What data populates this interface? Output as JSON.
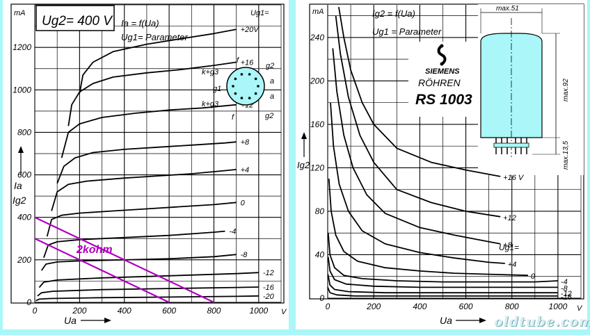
{
  "left_chart": {
    "title": "Ug2= 400 V",
    "function_line": "Ia = f(Ua)",
    "parameter_line": "Ug1= Parameter",
    "param_label": "Ug1=",
    "y_unit": "mA",
    "y_label_1": "Ia",
    "y_label_2": "Ig2",
    "x_label": "Ua",
    "x_unit": "V",
    "load_line_label": "2kohm",
    "load_line_color": "#b000c0",
    "pins": {
      "top": "f",
      "top_right": "g2",
      "right_upper": "a",
      "right_lower": "a",
      "bottom_right": "g2",
      "bottom": "f",
      "left_lower": "k+g3",
      "left_mid": "g1",
      "left_upper": "k+g3"
    },
    "pin_circle_color": "#aaf6f8"
  },
  "right_chart": {
    "function_line": "Ig2 = f(Ua)",
    "parameter_line": "Ug1 = Parameter",
    "param_label": "Ug1=",
    "y_unit": "mA",
    "y_label": "Ig2",
    "x_label": "Ua",
    "x_unit": "V"
  },
  "tube": {
    "brand": "SIEMENS",
    "subtitle": "RÖHREN",
    "model": "RS 1003",
    "dim_width": "max.51",
    "dim_height": "max.92",
    "dim_pins": "max.13,5",
    "tube_color": "#aaf6f8"
  },
  "watermark": "oldtube.com",
  "chart_data": [
    {
      "type": "line",
      "title": "Ug2= 400 V",
      "xlabel": "Ua",
      "ylabel": "Ia / Ig2",
      "x_unit": "V",
      "y_unit": "mA",
      "xlim": [
        0,
        1100
      ],
      "ylim": [
        0,
        1400
      ],
      "x_ticks": [
        0,
        200,
        400,
        600,
        800,
        1000
      ],
      "y_ticks": [
        0,
        200,
        400,
        600,
        800,
        1000,
        1200
      ],
      "grid": true,
      "series": [
        {
          "name": "+20V",
          "x": [
            200,
            215,
            260,
            350,
            500,
            650,
            800,
            900
          ],
          "y": [
            985,
            1070,
            1130,
            1180,
            1215,
            1240,
            1265,
            1285
          ]
        },
        {
          "name": "+16",
          "x": [
            150,
            165,
            200,
            260,
            350,
            500,
            650,
            800,
            900
          ],
          "y": [
            830,
            930,
            990,
            1030,
            1060,
            1080,
            1095,
            1115,
            1130
          ]
        },
        {
          "name": "+12",
          "x": [
            120,
            150,
            200,
            300,
            450,
            600,
            750,
            900
          ],
          "y": [
            680,
            800,
            840,
            870,
            890,
            905,
            915,
            930
          ]
        },
        {
          "name": "+8",
          "x": [
            100,
            130,
            180,
            260,
            400,
            550,
            700,
            850,
            900
          ],
          "y": [
            560,
            640,
            680,
            705,
            720,
            730,
            740,
            750,
            755
          ]
        },
        {
          "name": "+4",
          "x": [
            75,
            100,
            150,
            230,
            400,
            550,
            700,
            850,
            900
          ],
          "y": [
            430,
            520,
            555,
            570,
            585,
            595,
            605,
            620,
            625
          ]
        },
        {
          "name": "0",
          "x": [
            55,
            75,
            120,
            200,
            350,
            500,
            650,
            800,
            900
          ],
          "y": [
            310,
            390,
            410,
            420,
            430,
            440,
            450,
            460,
            470
          ]
        },
        {
          "name": "-4",
          "x": [
            40,
            60,
            100,
            200,
            400,
            600,
            800,
            850
          ],
          "y": [
            210,
            270,
            285,
            295,
            305,
            315,
            330,
            335
          ]
        },
        {
          "name": "-8",
          "x": [
            30,
            50,
            100,
            200,
            400,
            600,
            800,
            900
          ],
          "y": [
            150,
            180,
            190,
            195,
            200,
            205,
            215,
            225
          ]
        },
        {
          "name": "-12",
          "x": [
            20,
            40,
            100,
            300,
            600,
            900,
            1000
          ],
          "y": [
            70,
            95,
            105,
            115,
            125,
            135,
            140
          ]
        },
        {
          "name": "-16",
          "x": [
            12,
            30,
            80,
            300,
            600,
            900,
            1000
          ],
          "y": [
            30,
            45,
            52,
            60,
            65,
            70,
            72
          ]
        },
        {
          "name": "-20",
          "x": [
            5,
            20,
            70,
            300,
            600,
            900,
            1000
          ],
          "y": [
            8,
            15,
            18,
            22,
            25,
            28,
            30
          ]
        },
        {
          "name": "2kohm",
          "x": [
            0,
            800
          ],
          "y": [
            400,
            0
          ]
        },
        {
          "name": "",
          "x": [
            0,
            600
          ],
          "y": [
            300,
            0
          ]
        }
      ]
    },
    {
      "type": "line",
      "title": "",
      "xlabel": "Ua",
      "ylabel": "Ig2",
      "x_unit": "V",
      "y_unit": "mA",
      "xlim": [
        0,
        1100
      ],
      "ylim": [
        0,
        270
      ],
      "x_ticks": [
        0,
        200,
        400,
        600,
        800,
        1000
      ],
      "y_ticks": [
        0,
        40,
        80,
        120,
        160,
        200,
        240
      ],
      "grid": true,
      "series": [
        {
          "name": "+16 V",
          "x": [
            48,
            70,
            100,
            150,
            200,
            300,
            450,
            600,
            750
          ],
          "y": [
            268,
            240,
            210,
            180,
            160,
            138,
            125,
            118,
            112
          ]
        },
        {
          "name": "+12",
          "x": [
            35,
            55,
            90,
            140,
            200,
            300,
            450,
            600,
            750
          ],
          "y": [
            260,
            225,
            185,
            150,
            125,
            100,
            88,
            80,
            75
          ]
        },
        {
          "name": "+8",
          "x": [
            22,
            40,
            70,
            110,
            170,
            250,
            400,
            550,
            700,
            750
          ],
          "y": [
            230,
            190,
            150,
            120,
            95,
            78,
            65,
            58,
            52,
            50
          ]
        },
        {
          "name": "+4",
          "x": [
            12,
            25,
            50,
            90,
            150,
            250,
            400,
            550,
            700,
            770
          ],
          "y": [
            180,
            140,
            105,
            80,
            62,
            50,
            42,
            37,
            33,
            32
          ]
        },
        {
          "name": "0",
          "x": [
            5,
            15,
            35,
            70,
            130,
            250,
            400,
            550,
            700,
            870
          ],
          "y": [
            110,
            80,
            58,
            43,
            34,
            28,
            25,
            23,
            22,
            21
          ]
        },
        {
          "name": "-4",
          "x": [
            2,
            10,
            30,
            70,
            150,
            300,
            500,
            700,
            900,
            1000
          ],
          "y": [
            60,
            40,
            28,
            21,
            18,
            16,
            15,
            15,
            15,
            16
          ]
        },
        {
          "name": "-8",
          "x": [
            2,
            10,
            30,
            80,
            200,
            400,
            600,
            800,
            1000
          ],
          "y": [
            38,
            25,
            17,
            13,
            11,
            10,
            10,
            10,
            10
          ]
        },
        {
          "name": "-12",
          "x": [
            1,
            10,
            30,
            90,
            250,
            500,
            750,
            1000
          ],
          "y": [
            22,
            12,
            8,
            6,
            5,
            5,
            5,
            5
          ]
        },
        {
          "name": "-16",
          "x": [
            0,
            10,
            40,
            120,
            300,
            600,
            1000
          ],
          "y": [
            10,
            5,
            3,
            2,
            2,
            2,
            2
          ]
        }
      ]
    }
  ]
}
